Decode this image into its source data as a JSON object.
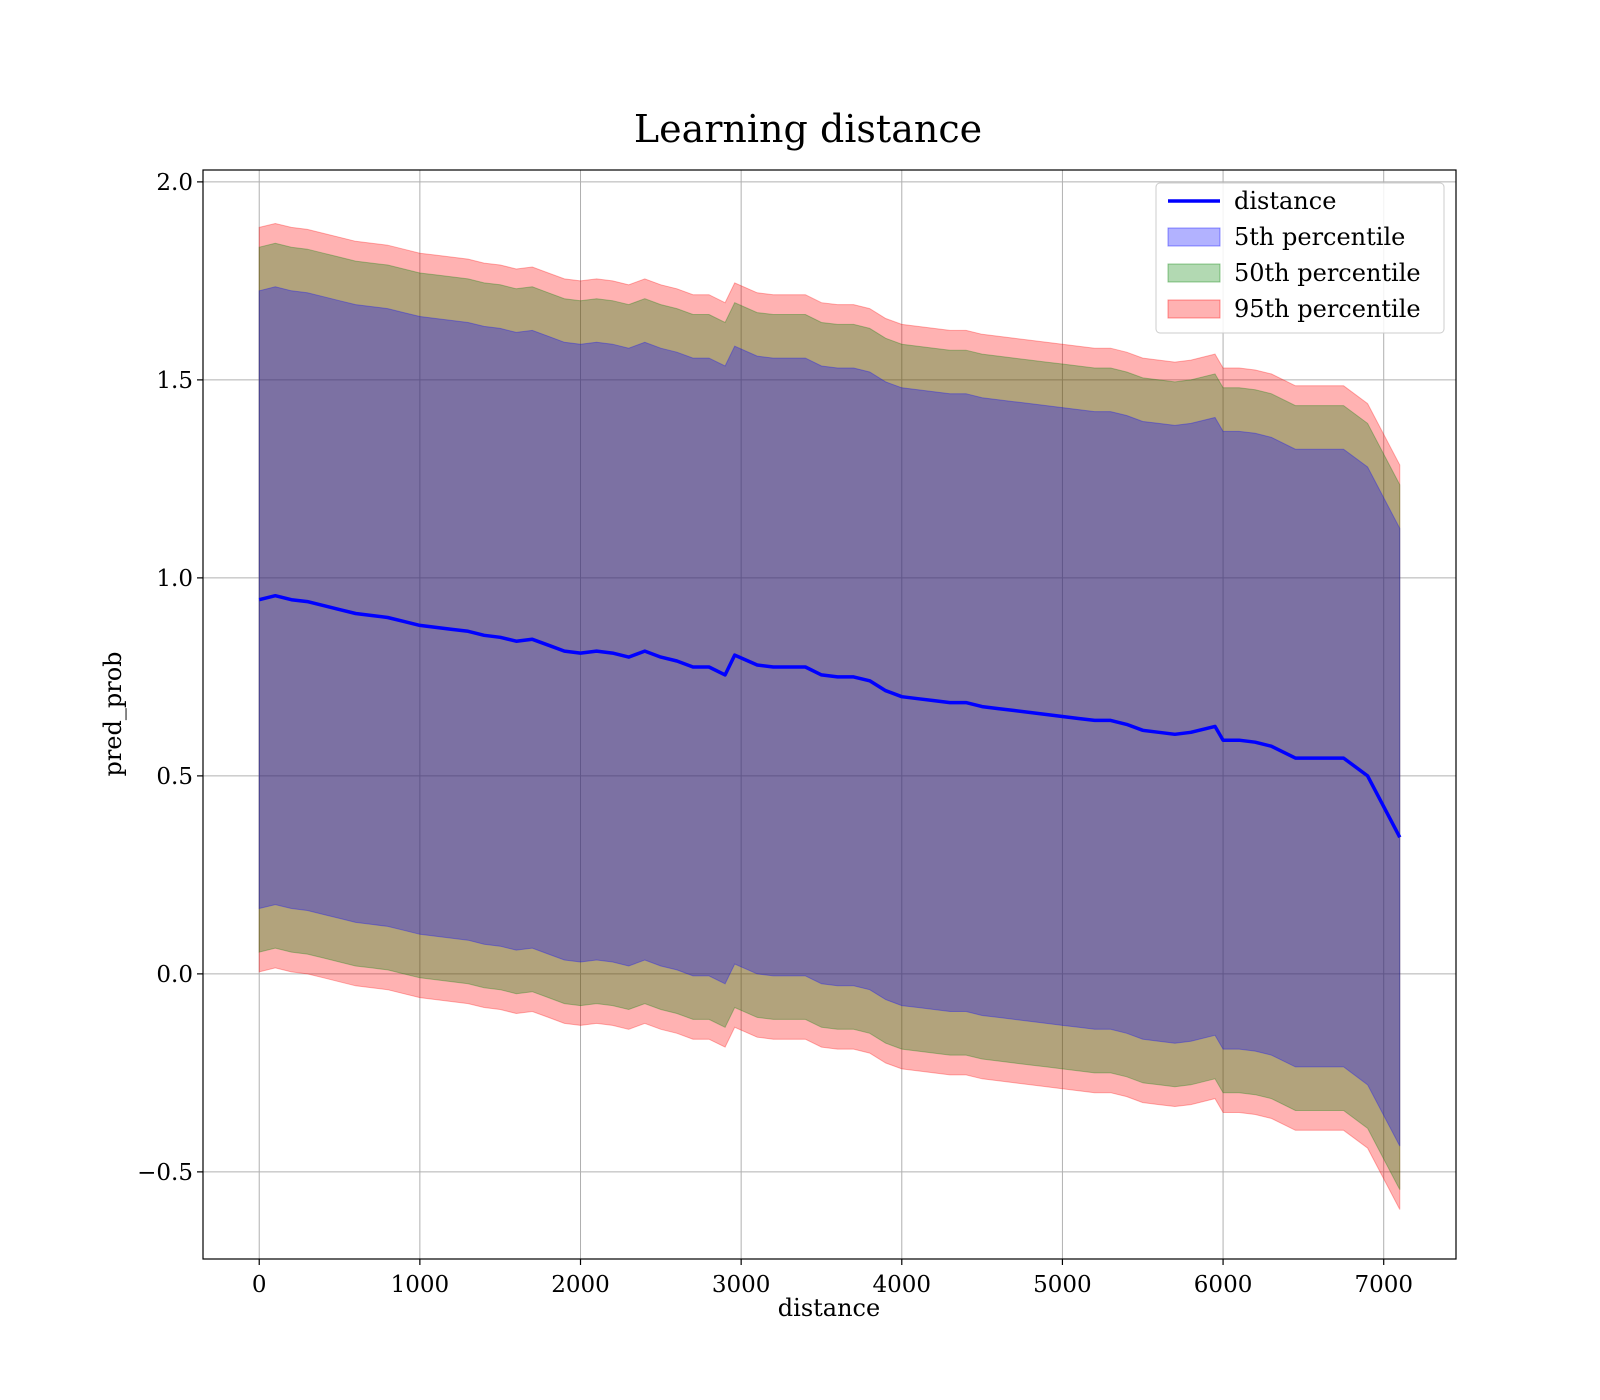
{
  "chart_data": {
    "type": "line",
    "title": "Learning distance",
    "xlabel": "distance",
    "ylabel": "pred_prob",
    "xlim": [
      -350,
      7450
    ],
    "ylim": [
      -0.72,
      2.03
    ],
    "xticks": [
      0,
      1000,
      2000,
      3000,
      4000,
      5000,
      6000,
      7000
    ],
    "xtick_labels": [
      "0",
      "1000",
      "2000",
      "3000",
      "4000",
      "5000",
      "6000",
      "7000"
    ],
    "yticks": [
      -0.5,
      0.0,
      0.5,
      1.0,
      1.5,
      2.0
    ],
    "ytick_labels": [
      "−0.5",
      "0.0",
      "0.5",
      "1.0",
      "1.5",
      "2.0"
    ],
    "grid": true,
    "legend_position": "top-right",
    "line": {
      "name": "distance",
      "color": "#0000ff",
      "x": [
        0,
        100,
        200,
        300,
        400,
        500,
        600,
        700,
        800,
        900,
        1000,
        1100,
        1200,
        1300,
        1400,
        1500,
        1600,
        1700,
        1800,
        1900,
        2000,
        2100,
        2200,
        2300,
        2400,
        2500,
        2600,
        2700,
        2800,
        2900,
        2960,
        3100,
        3200,
        3300,
        3400,
        3500,
        3600,
        3700,
        3800,
        3900,
        4000,
        4100,
        4200,
        4300,
        4400,
        4500,
        4600,
        4700,
        4800,
        4900,
        5000,
        5100,
        5200,
        5300,
        5400,
        5500,
        5600,
        5700,
        5800,
        5950,
        6000,
        6100,
        6200,
        6300,
        6450,
        6600,
        6750,
        6900,
        7100
      ],
      "y": [
        0.945,
        0.955,
        0.945,
        0.94,
        0.93,
        0.92,
        0.91,
        0.905,
        0.9,
        0.89,
        0.88,
        0.875,
        0.87,
        0.865,
        0.855,
        0.85,
        0.84,
        0.845,
        0.83,
        0.815,
        0.81,
        0.815,
        0.81,
        0.8,
        0.815,
        0.8,
        0.79,
        0.775,
        0.775,
        0.755,
        0.805,
        0.78,
        0.775,
        0.775,
        0.775,
        0.755,
        0.75,
        0.75,
        0.74,
        0.715,
        0.7,
        0.695,
        0.69,
        0.685,
        0.685,
        0.675,
        0.67,
        0.665,
        0.66,
        0.655,
        0.65,
        0.645,
        0.64,
        0.64,
        0.63,
        0.615,
        0.61,
        0.605,
        0.61,
        0.625,
        0.59,
        0.59,
        0.585,
        0.575,
        0.545,
        0.545,
        0.545,
        0.5,
        0.345
      ]
    },
    "bands": [
      {
        "name": "5th percentile",
        "fill": "#0000ff",
        "alpha": 0.3,
        "half_width": [
          0.78,
          0.78,
          0.78,
          0.78,
          0.78,
          0.78,
          0.78,
          0.78,
          0.78,
          0.78,
          0.78,
          0.78,
          0.78,
          0.78,
          0.78,
          0.78,
          0.78,
          0.78,
          0.78,
          0.78,
          0.78,
          0.78,
          0.78,
          0.78,
          0.78,
          0.78,
          0.78,
          0.78,
          0.78,
          0.78,
          0.78,
          0.78,
          0.78,
          0.78,
          0.78,
          0.78,
          0.78,
          0.78,
          0.78,
          0.78,
          0.78,
          0.78,
          0.78,
          0.78,
          0.78,
          0.78,
          0.78,
          0.78,
          0.78,
          0.78,
          0.78,
          0.78,
          0.78,
          0.78,
          0.78,
          0.78,
          0.78,
          0.78,
          0.78,
          0.78,
          0.78,
          0.78,
          0.78,
          0.78,
          0.78,
          0.78,
          0.78,
          0.78,
          0.78
        ]
      },
      {
        "name": "50th percentile",
        "fill": "#008000",
        "alpha": 0.3,
        "half_width": [
          0.89,
          0.89,
          0.89,
          0.89,
          0.89,
          0.89,
          0.89,
          0.89,
          0.89,
          0.89,
          0.89,
          0.89,
          0.89,
          0.89,
          0.89,
          0.89,
          0.89,
          0.89,
          0.89,
          0.89,
          0.89,
          0.89,
          0.89,
          0.89,
          0.89,
          0.89,
          0.89,
          0.89,
          0.89,
          0.89,
          0.89,
          0.89,
          0.89,
          0.89,
          0.89,
          0.89,
          0.89,
          0.89,
          0.89,
          0.89,
          0.89,
          0.89,
          0.89,
          0.89,
          0.89,
          0.89,
          0.89,
          0.89,
          0.89,
          0.89,
          0.89,
          0.89,
          0.89,
          0.89,
          0.89,
          0.89,
          0.89,
          0.89,
          0.89,
          0.89,
          0.89,
          0.89,
          0.89,
          0.89,
          0.89,
          0.89,
          0.89,
          0.89,
          0.89
        ]
      },
      {
        "name": "95th percentile",
        "fill": "#ff0000",
        "alpha": 0.3,
        "half_width": [
          0.94,
          0.94,
          0.94,
          0.94,
          0.94,
          0.94,
          0.94,
          0.94,
          0.94,
          0.94,
          0.94,
          0.94,
          0.94,
          0.94,
          0.94,
          0.94,
          0.94,
          0.94,
          0.94,
          0.94,
          0.94,
          0.94,
          0.94,
          0.94,
          0.94,
          0.94,
          0.94,
          0.94,
          0.94,
          0.94,
          0.94,
          0.94,
          0.94,
          0.94,
          0.94,
          0.94,
          0.94,
          0.94,
          0.94,
          0.94,
          0.94,
          0.94,
          0.94,
          0.94,
          0.94,
          0.94,
          0.94,
          0.94,
          0.94,
          0.94,
          0.94,
          0.94,
          0.94,
          0.94,
          0.94,
          0.94,
          0.94,
          0.94,
          0.94,
          0.94,
          0.94,
          0.94,
          0.94,
          0.94,
          0.94,
          0.94,
          0.94,
          0.94,
          0.94
        ]
      }
    ],
    "legend": [
      "distance",
      "5th percentile",
      "50th percentile",
      "95th percentile"
    ]
  }
}
